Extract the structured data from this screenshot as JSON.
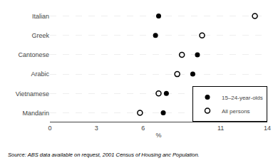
{
  "chart_data": {
    "type": "dot",
    "categories": [
      "Italian",
      "Greek",
      "Cantonese",
      "Arabic",
      "Vietnamese",
      "Mandarin"
    ],
    "series": [
      {
        "name": "15–24-year-olds",
        "color": "#000000",
        "marker": "circle",
        "values": [
          7.0,
          6.8,
          9.5,
          9.2,
          7.5,
          7.3
        ]
      },
      {
        "name": "All persons",
        "color": "#000000",
        "marker": "circle-open",
        "values": [
          13.2,
          9.8,
          8.5,
          8.2,
          7.0,
          5.8
        ]
      }
    ],
    "xlabel": "%",
    "xlim": [
      0,
      14
    ],
    "xticks": [
      0,
      3,
      6,
      {
        "value": 9,
        "label": null
      },
      11,
      14
    ],
    "grid": true,
    "legend": "lower right",
    "annotations": [
      "Source: ABS data available on request, 2001 Census of Housing anc Population."
    ]
  }
}
